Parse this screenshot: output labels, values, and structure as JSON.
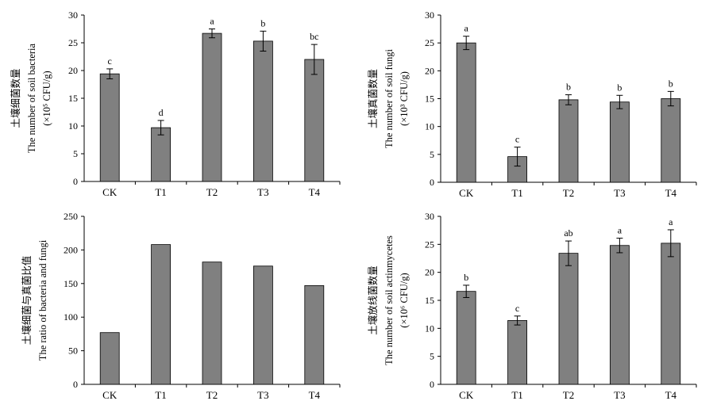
{
  "chart_data": [
    {
      "type": "bar",
      "categories": [
        "CK",
        "T1",
        "T2",
        "T3",
        "T4"
      ],
      "values": [
        19.4,
        9.7,
        26.7,
        25.3,
        22.0
      ],
      "errors": [
        0.9,
        1.3,
        0.8,
        1.8,
        2.7
      ],
      "letters": [
        "c",
        "d",
        "a",
        "b",
        "bc"
      ],
      "ylabel_cn": "土壤细菌数量",
      "ylabel_en": "The number of soil bacteria",
      "ylabel_unit": "(×10⁵ CFU/g)",
      "ylim": [
        0,
        30
      ],
      "yticks": [
        "0",
        "5",
        "10",
        "15",
        "20",
        "25",
        "30"
      ],
      "bar_color": "#808080"
    },
    {
      "type": "bar",
      "categories": [
        "CK",
        "T1",
        "T2",
        "T3",
        "T4"
      ],
      "values": [
        25.0,
        4.6,
        14.8,
        14.4,
        15.0
      ],
      "errors": [
        1.2,
        1.7,
        0.9,
        1.2,
        1.3
      ],
      "letters": [
        "a",
        "c",
        "b",
        "b",
        "b"
      ],
      "ylabel_cn": "土壤真菌数量",
      "ylabel_en": "The number of soil fungi",
      "ylabel_unit": "(×10³ CFU/g)",
      "ylim": [
        0,
        30
      ],
      "yticks": [
        "0",
        "5",
        "10",
        "15",
        "20",
        "25",
        "30"
      ],
      "bar_color": "#808080"
    },
    {
      "type": "bar",
      "categories": [
        "CK",
        "T1",
        "T2",
        "T3",
        "T4"
      ],
      "values": [
        77,
        208,
        182,
        176,
        147
      ],
      "errors": null,
      "letters": [
        "",
        "",
        "",
        "",
        ""
      ],
      "ylabel_cn": "土壤细菌与真菌比值",
      "ylabel_en": "The ratio of bacteria and fungi",
      "ylabel_unit": "",
      "ylim": [
        0,
        250
      ],
      "yticks": [
        "0",
        "50",
        "100",
        "150",
        "200",
        "250"
      ],
      "bar_color": "#808080"
    },
    {
      "type": "bar",
      "categories": [
        "CK",
        "T1",
        "T2",
        "T3",
        "T4"
      ],
      "values": [
        16.6,
        11.4,
        23.4,
        24.8,
        25.2
      ],
      "errors": [
        1.1,
        0.8,
        2.2,
        1.3,
        2.4
      ],
      "letters": [
        "b",
        "c",
        "ab",
        "a",
        "a"
      ],
      "ylabel_cn": "土壤放线菌数量",
      "ylabel_en": "The number of soil actinmycetes",
      "ylabel_unit": "(×10⁶ CFU/g)",
      "ylim": [
        0,
        30
      ],
      "yticks": [
        "0",
        "5",
        "10",
        "15",
        "20",
        "25",
        "30"
      ],
      "bar_color": "#808080"
    }
  ]
}
